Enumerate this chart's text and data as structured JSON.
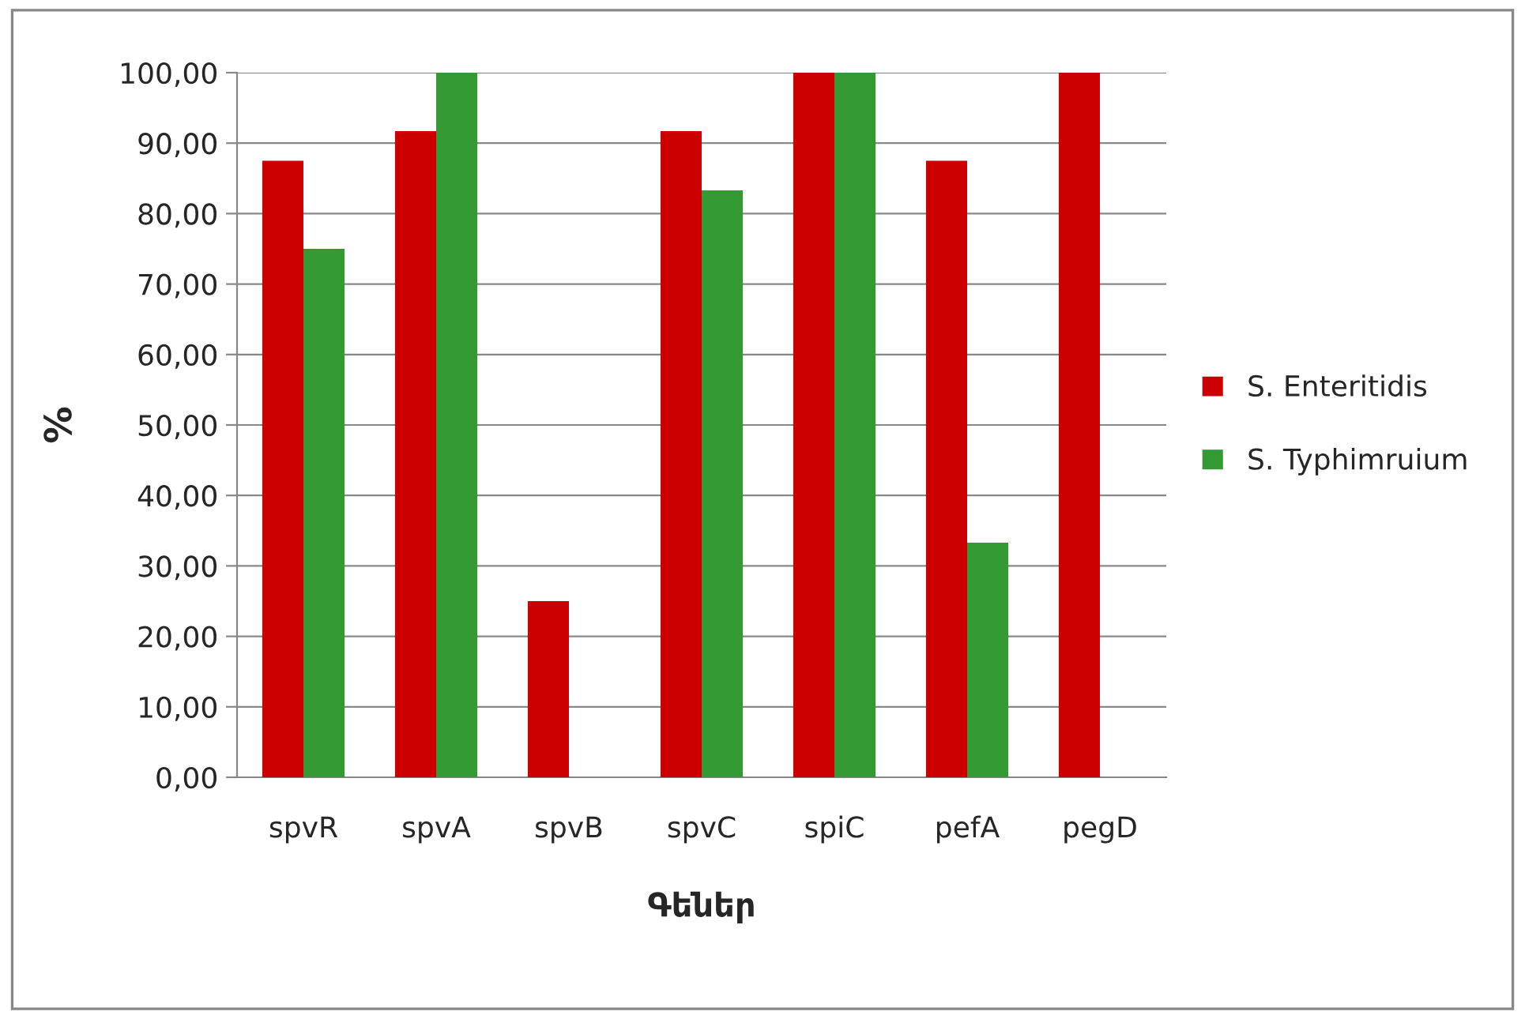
{
  "chart_data": {
    "type": "bar",
    "xlabel": "Գեներ",
    "ylabel": "%",
    "categories": [
      "spvR",
      "spvA",
      "spvB",
      "spvC",
      "spiC",
      "pefA",
      "pegD"
    ],
    "series": [
      {
        "name": "S. Enteritidis",
        "color": "#cc0000",
        "values": [
          87.5,
          91.7,
          25,
          91.7,
          100,
          87.5,
          100
        ]
      },
      {
        "name": "S. Typhimruium",
        "color": "#339933",
        "values": [
          75,
          100,
          null,
          83.3,
          100,
          33.3,
          null
        ]
      }
    ],
    "ylim": [
      0,
      100
    ],
    "yticks": [
      {
        "value": 0,
        "label": "0,00"
      },
      {
        "value": 10,
        "label": "10,00"
      },
      {
        "value": 20,
        "label": "20,00"
      },
      {
        "value": 30,
        "label": "30,00"
      },
      {
        "value": 40,
        "label": "40,00"
      },
      {
        "value": 50,
        "label": "50,00"
      },
      {
        "value": 60,
        "label": "60,00"
      },
      {
        "value": 70,
        "label": "70,00"
      },
      {
        "value": 80,
        "label": "80,00"
      },
      {
        "value": 90,
        "label": "90,00"
      },
      {
        "value": 100,
        "label": "100,00"
      }
    ],
    "grid": "y",
    "legend": "right"
  }
}
